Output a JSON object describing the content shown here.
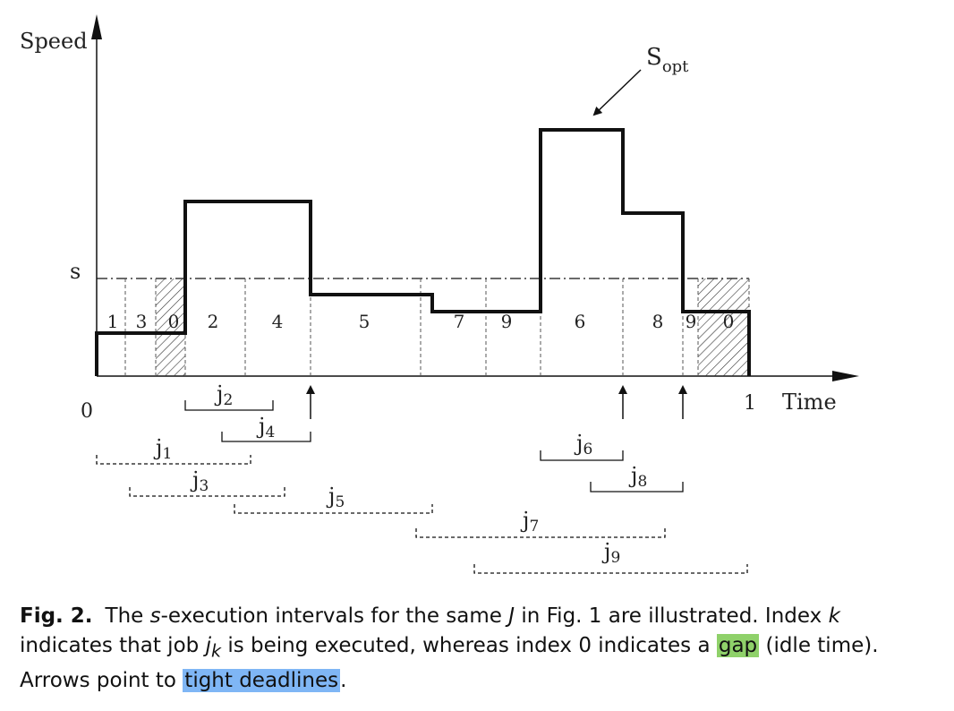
{
  "figure": {
    "axis": {
      "y_label": "Speed",
      "x_label": "Time",
      "origin_label": "0",
      "end_label": "1",
      "s_label": "s",
      "sopt_main": "S",
      "sopt_sub": "opt"
    },
    "intervals": [
      {
        "label": "1",
        "hatched": false
      },
      {
        "label": "3",
        "hatched": false
      },
      {
        "label": "0",
        "hatched": true
      },
      {
        "label": "2",
        "hatched": false
      },
      {
        "label": "4",
        "hatched": false
      },
      {
        "label": "5",
        "hatched": false
      },
      {
        "label": "7",
        "hatched": false
      },
      {
        "label": "9",
        "hatched": false
      },
      {
        "label": "6",
        "hatched": false
      },
      {
        "label": "8",
        "hatched": false
      },
      {
        "label": "9",
        "hatched": false
      },
      {
        "label": "0",
        "hatched": true
      }
    ],
    "jobs": [
      {
        "main": "j",
        "sub": "2",
        "style": "solid"
      },
      {
        "main": "j",
        "sub": "4",
        "style": "solid"
      },
      {
        "main": "j",
        "sub": "1",
        "style": "dotted"
      },
      {
        "main": "j",
        "sub": "3",
        "style": "dotted"
      },
      {
        "main": "j",
        "sub": "5",
        "style": "dotted"
      },
      {
        "main": "j",
        "sub": "6",
        "style": "solid"
      },
      {
        "main": "j",
        "sub": "8",
        "style": "solid"
      },
      {
        "main": "j",
        "sub": "7",
        "style": "dotted"
      },
      {
        "main": "j",
        "sub": "9",
        "style": "dotted"
      }
    ],
    "tight_deadline_count": 3
  },
  "caption": {
    "label": "Fig. 2.",
    "p1": "The ",
    "p2": "s",
    "p3": "-execution intervals for the same ",
    "p4": "J",
    "p5": " in Fig. 1 are illustrated. Index ",
    "p6": "k",
    "p7": " indicates that job ",
    "p8": "j",
    "p9": "k",
    "p10": " is being executed, whereas index 0 indicates a ",
    "hl_gap": "gap",
    "p11": " (idle time). Arrows point to ",
    "hl_tight": "tight deadlines",
    "p12": "."
  },
  "colors": {
    "ink": "#111111",
    "highlight_green": "#8fd16a",
    "highlight_blue": "#7fb6f5"
  }
}
